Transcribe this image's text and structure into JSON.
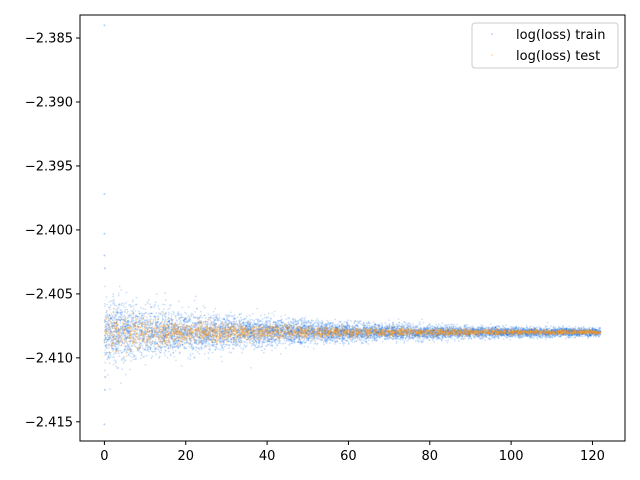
{
  "chart_data": {
    "type": "scatter",
    "title": "",
    "xlabel": "",
    "ylabel": "",
    "xlim": [
      -6,
      128
    ],
    "ylim": [
      -2.4165,
      -2.3832
    ],
    "xticks": [
      0,
      20,
      40,
      60,
      80,
      100,
      120
    ],
    "yticks": [
      -2.385,
      -2.39,
      -2.395,
      -2.4,
      -2.405,
      -2.41,
      -2.415
    ],
    "xtick_labels": [
      "0",
      "20",
      "40",
      "60",
      "80",
      "100",
      "120"
    ],
    "ytick_labels": [
      "−2.385",
      "−2.390",
      "−2.395",
      "−2.400",
      "−2.405",
      "−2.410",
      "−2.415"
    ],
    "grid": false,
    "legend_position": "top-right",
    "series": [
      {
        "name": "log(loss) train",
        "color": "#1f77e6",
        "center": -2.408,
        "spread_at_start": 0.0022,
        "spread_at_end": 0.0002,
        "x_range": [
          0,
          122
        ],
        "outliers": [
          {
            "x": 0.0,
            "y": -2.384
          },
          {
            "x": 0.0,
            "y": -2.3972
          },
          {
            "x": 0.0,
            "y": -2.4003
          },
          {
            "x": 0.0,
            "y": -2.402
          },
          {
            "x": 0.1,
            "y": -2.403
          },
          {
            "x": 0.0,
            "y": -2.4152
          },
          {
            "x": 0.1,
            "y": -2.4125
          },
          {
            "x": 0.2,
            "y": -2.4115
          }
        ]
      },
      {
        "name": "log(loss) test",
        "color": "#ff9a1f",
        "center": -2.408,
        "spread_at_start": 0.0012,
        "spread_at_end": 0.0001,
        "x_range": [
          0,
          122
        ],
        "outliers": []
      }
    ]
  }
}
